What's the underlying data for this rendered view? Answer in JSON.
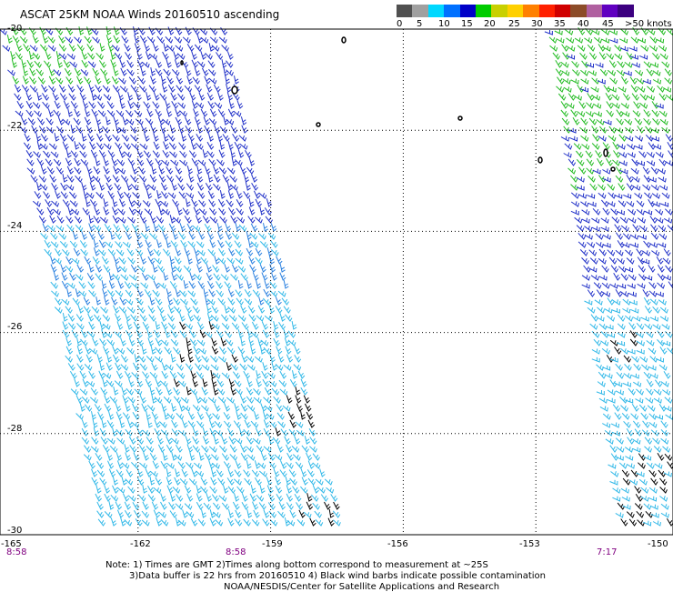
{
  "title": "ASCAT 25KM NOAA Winds 20160510 ascending",
  "legend": {
    "swatches": [
      "#505050",
      "#a0a0a0",
      "#00d8ff",
      "#0070ff",
      "#0000c8",
      "#00cc00",
      "#c8d000",
      "#ffd000",
      "#ff8000",
      "#ff2000",
      "#d00000",
      "#8c4c28",
      "#b060a0",
      "#6000c0",
      "#3c0080"
    ],
    "labels": [
      "0",
      "5",
      "10",
      "15",
      "20",
      "25",
      "30",
      "35",
      "40",
      "45",
      ">50 knots"
    ]
  },
  "axes": {
    "y_labels": [
      "-20",
      "-22",
      "-24",
      "-26",
      "-28",
      "-30"
    ],
    "x_labels": [
      "-165",
      "-162",
      "-159",
      "-156",
      "-153",
      "-150"
    ]
  },
  "times": [
    "8:58",
    "8:58",
    "7:17"
  ],
  "notes": [
    "Note: 1) Times are GMT 2)Times along bottom correspond to measurement at ~25S",
    "3)Data buffer is 22 hrs from 20160510 4) Black wind barbs indicate possible contamination",
    "NOAA/NESDIS/Center for Satellite Applications and Research"
  ],
  "colors": {
    "green": "#22bb22",
    "blue": "#2030c8",
    "mid_blue": "#2a80e0",
    "cyan": "#30b8e8",
    "black": "#000000",
    "grid": "#000000"
  }
}
